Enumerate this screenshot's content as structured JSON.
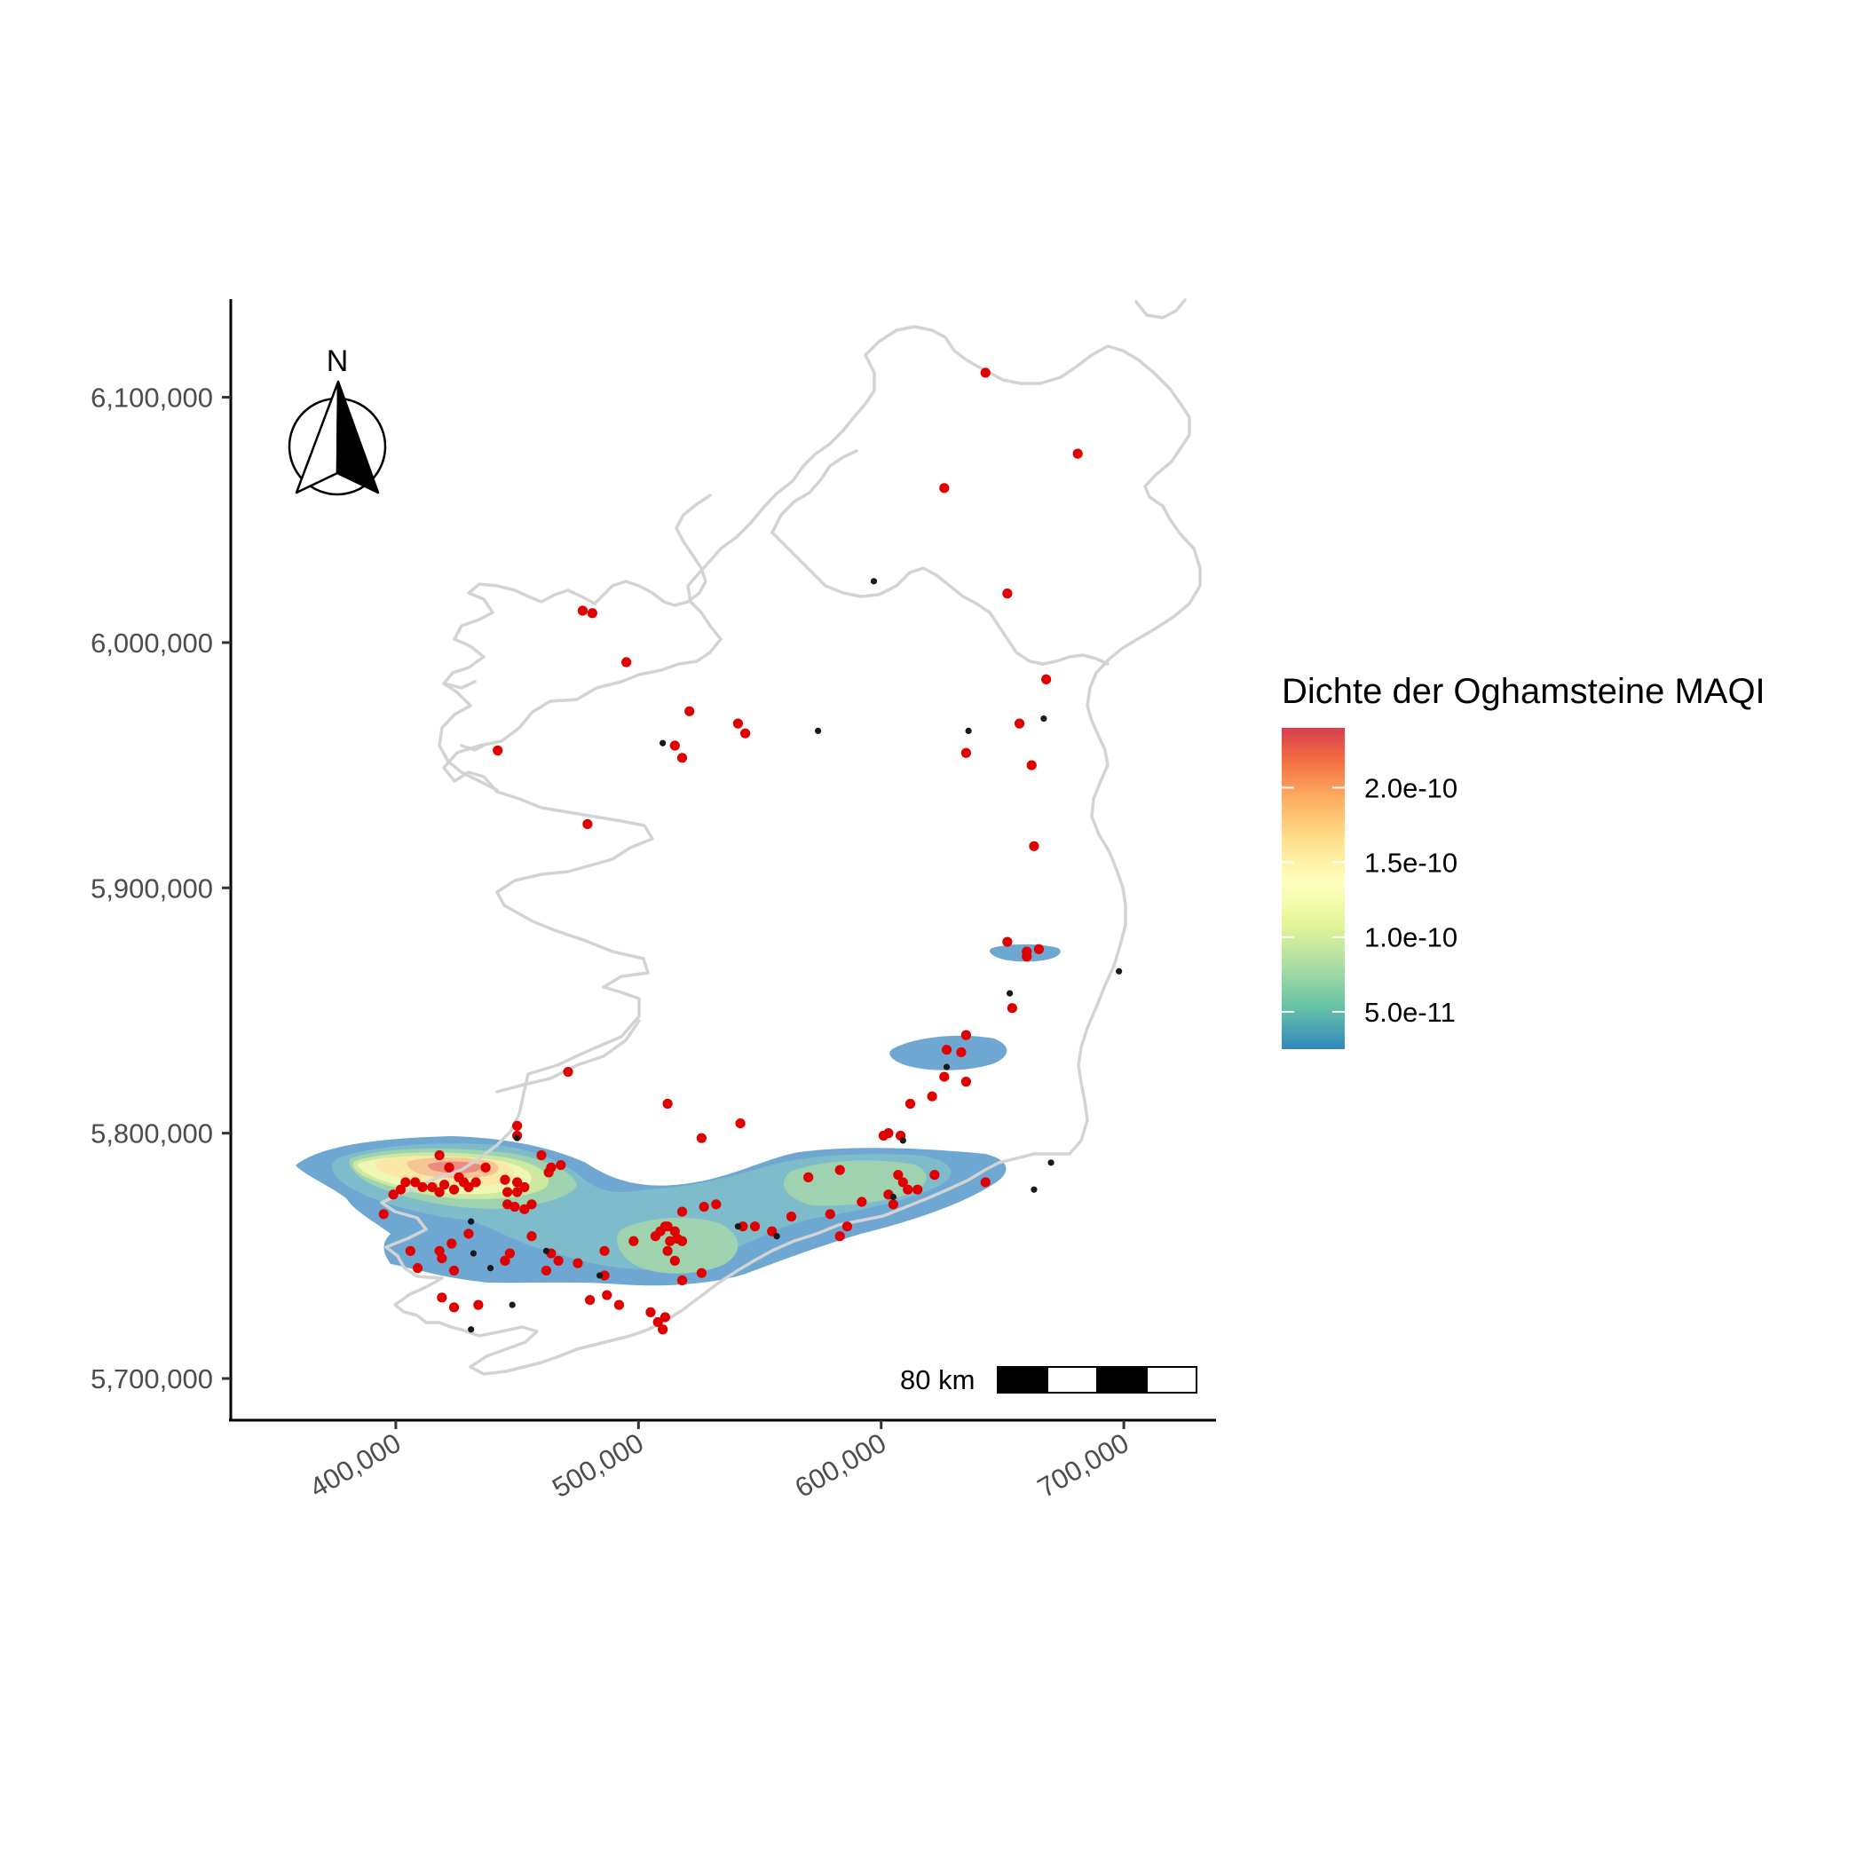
{
  "map": {
    "x_ticks": [
      {
        "value": 400000,
        "label": "400,000"
      },
      {
        "value": 500000,
        "label": "500,000"
      },
      {
        "value": 600000,
        "label": "600,000"
      },
      {
        "value": 700000,
        "label": "700,000"
      }
    ],
    "y_ticks": [
      {
        "value": 6100000,
        "label": "6,100,000"
      },
      {
        "value": 6000000,
        "label": "6,000,000"
      },
      {
        "value": 5900000,
        "label": "5,900,000"
      },
      {
        "value": 5800000,
        "label": "5,800,000"
      },
      {
        "value": 5700000,
        "label": "5,700,000"
      }
    ],
    "x_range": [
      332000,
      738000
    ],
    "y_range": [
      5683000,
      6140000
    ],
    "north_arrow": {
      "label": "N",
      "icon": "north-arrow-icon"
    },
    "scale_bar": {
      "label": "80 km",
      "segments": 4,
      "length_km": 80
    },
    "coastline_color": "#d3d3d3"
  },
  "legend": {
    "title": "Dichte der Oghamsteine MAQI",
    "labels": [
      {
        "value": 2e-10,
        "label": "2.0e-10"
      },
      {
        "value": 1.5e-10,
        "label": "1.5e-10"
      },
      {
        "value": 1e-10,
        "label": "1.0e-10"
      },
      {
        "value": 5e-11,
        "label": "5.0e-11"
      }
    ],
    "range": [
      2.5e-11,
      2.4e-10
    ],
    "colors": [
      "#3288bd",
      "#66c2a5",
      "#abdda4",
      "#e6f598",
      "#ffffbf",
      "#fee08b",
      "#fdae61",
      "#f46d43",
      "#d53e4f"
    ]
  },
  "points": {
    "red": [
      [
        643,
        6110
      ],
      [
        681,
        6077
      ],
      [
        626,
        6063
      ],
      [
        652,
        6020
      ],
      [
        477,
        6013
      ],
      [
        481,
        6012
      ],
      [
        495,
        5992
      ],
      [
        668,
        5985
      ],
      [
        521,
        5972
      ],
      [
        541,
        5967
      ],
      [
        544,
        5963
      ],
      [
        657,
        5967
      ],
      [
        515,
        5958
      ],
      [
        518,
        5953
      ],
      [
        635,
        5955
      ],
      [
        662,
        5950
      ],
      [
        442,
        5956
      ],
      [
        479,
        5926
      ],
      [
        663,
        5917
      ],
      [
        652,
        5878
      ],
      [
        660,
        5874
      ],
      [
        665,
        5875
      ],
      [
        660,
        5872
      ],
      [
        654,
        5851
      ],
      [
        635,
        5840
      ],
      [
        627,
        5834
      ],
      [
        633,
        5833
      ],
      [
        626,
        5823
      ],
      [
        635,
        5821
      ],
      [
        612,
        5812
      ],
      [
        621,
        5815
      ],
      [
        471,
        5825
      ],
      [
        512,
        5812
      ],
      [
        526,
        5798
      ],
      [
        542,
        5804
      ],
      [
        601,
        5799
      ],
      [
        608,
        5799
      ],
      [
        603,
        5800
      ],
      [
        450,
        5803
      ],
      [
        450,
        5799
      ],
      [
        460,
        5791
      ],
      [
        464,
        5786
      ],
      [
        468,
        5787
      ],
      [
        463,
        5784
      ],
      [
        422,
        5786
      ],
      [
        426,
        5782
      ],
      [
        437,
        5786
      ],
      [
        418,
        5791
      ],
      [
        408,
        5780
      ],
      [
        411,
        5778
      ],
      [
        415,
        5778
      ],
      [
        418,
        5776
      ],
      [
        420,
        5779
      ],
      [
        424,
        5777
      ],
      [
        428,
        5780
      ],
      [
        430,
        5778
      ],
      [
        433,
        5780
      ],
      [
        445,
        5781
      ],
      [
        450,
        5780
      ],
      [
        446,
        5776
      ],
      [
        450,
        5776
      ],
      [
        453,
        5778
      ],
      [
        456,
        5771
      ],
      [
        453,
        5769
      ],
      [
        449,
        5770
      ],
      [
        446,
        5771
      ],
      [
        402,
        5777
      ],
      [
        404,
        5780
      ],
      [
        399,
        5775
      ],
      [
        395,
        5767
      ],
      [
        527,
        5770
      ],
      [
        532,
        5771
      ],
      [
        518,
        5768
      ],
      [
        509,
        5760
      ],
      [
        512,
        5762
      ],
      [
        515,
        5760
      ],
      [
        513,
        5756
      ],
      [
        516,
        5757
      ],
      [
        518,
        5756
      ],
      [
        507,
        5758
      ],
      [
        511,
        5762
      ],
      [
        543,
        5762
      ],
      [
        548,
        5762
      ],
      [
        555,
        5760
      ],
      [
        563,
        5766
      ],
      [
        570,
        5782
      ],
      [
        583,
        5785
      ],
      [
        592,
        5772
      ],
      [
        603,
        5775
      ],
      [
        605,
        5771
      ],
      [
        607,
        5783
      ],
      [
        609,
        5780
      ],
      [
        611,
        5777
      ],
      [
        615,
        5777
      ],
      [
        622,
        5783
      ],
      [
        643,
        5780
      ],
      [
        430,
        5759
      ],
      [
        423,
        5755
      ],
      [
        406,
        5752
      ],
      [
        418,
        5752
      ],
      [
        419,
        5749
      ],
      [
        424,
        5744
      ],
      [
        447,
        5751
      ],
      [
        445,
        5748
      ],
      [
        456,
        5758
      ],
      [
        464,
        5751
      ],
      [
        462,
        5744
      ],
      [
        467,
        5748
      ],
      [
        475,
        5747
      ],
      [
        486,
        5752
      ],
      [
        486,
        5742
      ],
      [
        512,
        5752
      ],
      [
        515,
        5748
      ],
      [
        518,
        5740
      ],
      [
        526,
        5743
      ],
      [
        498,
        5756
      ],
      [
        586,
        5762
      ],
      [
        583,
        5758
      ],
      [
        579,
        5767
      ],
      [
        409,
        5745
      ],
      [
        419,
        5733
      ],
      [
        424,
        5729
      ],
      [
        434,
        5730
      ],
      [
        480,
        5732
      ],
      [
        487,
        5734
      ],
      [
        492,
        5730
      ],
      [
        505,
        5727
      ],
      [
        508,
        5723
      ],
      [
        511,
        5725
      ],
      [
        510,
        5720
      ]
    ],
    "dark": [
      [
        597,
        6025
      ],
      [
        574,
        5964
      ],
      [
        636,
        5964
      ],
      [
        667,
        5969
      ],
      [
        510,
        5959
      ],
      [
        627,
        5827
      ],
      [
        653,
        5857
      ],
      [
        609,
        5797
      ],
      [
        698,
        5866
      ],
      [
        670,
        5788
      ],
      [
        663,
        5777
      ],
      [
        605,
        5774
      ],
      [
        541,
        5762
      ],
      [
        557,
        5758
      ],
      [
        484,
        5742
      ],
      [
        431,
        5764
      ],
      [
        439,
        5745
      ],
      [
        432,
        5751
      ],
      [
        431,
        5720
      ],
      [
        448,
        5730
      ],
      [
        450,
        5798
      ],
      [
        462,
        5752
      ]
    ],
    "red_color": "#e00000",
    "dark_color": "#1a1a1a"
  }
}
